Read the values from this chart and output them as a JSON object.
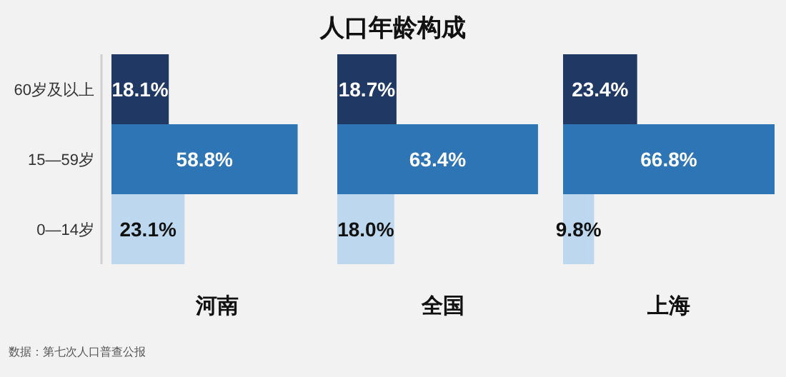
{
  "chart_data": [
    {
      "type": "other",
      "title": "人口年龄构成",
      "annotations": [
        "数据：第七次人口普查公报"
      ]
    },
    {
      "type": "bar",
      "orientation": "horizontal",
      "xlabel": "河南",
      "categories": [
        "60岁及以上",
        "15—59岁",
        "0—14岁"
      ],
      "values": [
        18.1,
        58.8,
        23.1
      ],
      "value_labels": [
        "18.1%",
        "58.8%",
        "23.1%"
      ],
      "colors": [
        "#1f3864",
        "#2e75b6",
        "#bdd7ee"
      ],
      "tick_labels": "y"
    },
    {
      "type": "bar",
      "orientation": "horizontal",
      "xlabel": "全国",
      "categories": [
        null,
        null,
        null
      ],
      "values": [
        18.7,
        63.4,
        18.0
      ],
      "value_labels": [
        "18.7%",
        "63.4%",
        "18.0%"
      ],
      "colors": [
        "#1f3864",
        "#2e75b6",
        "#bdd7ee"
      ],
      "tick_labels": false
    },
    {
      "type": "bar",
      "orientation": "horizontal",
      "xlabel": "上海",
      "categories": [
        null,
        null,
        null
      ],
      "values": [
        23.4,
        66.8,
        9.8
      ],
      "value_labels": [
        "23.4%",
        "66.8%",
        "9.8%"
      ],
      "colors": [
        "#1f3864",
        "#2e75b6",
        "#bdd7ee"
      ],
      "tick_labels": false
    }
  ]
}
